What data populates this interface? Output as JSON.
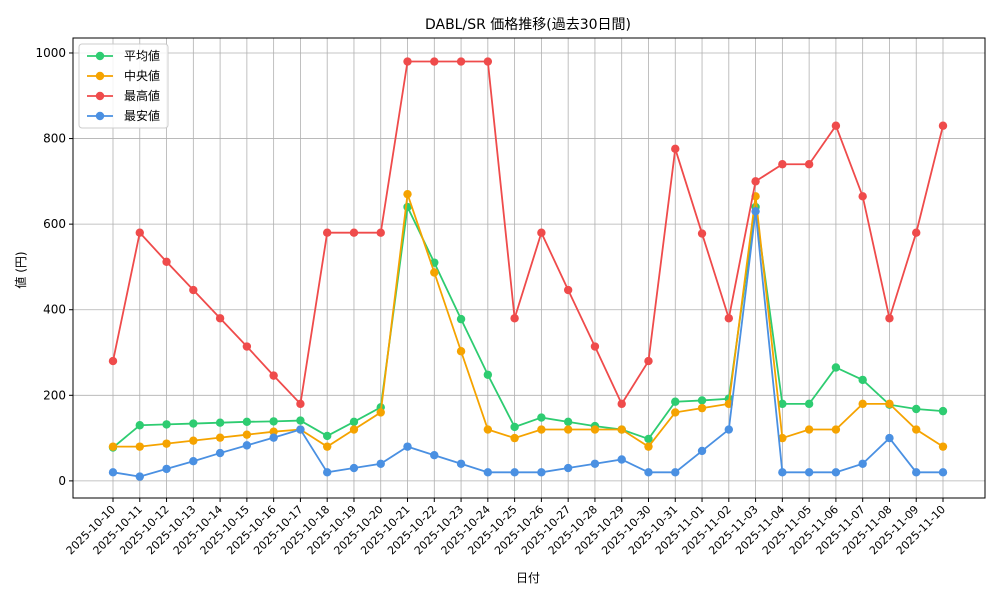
{
  "chart_data": {
    "type": "line",
    "title": "DABL/SR 価格推移(過去30日間)",
    "xlabel": "日付",
    "ylabel": "値 (円)",
    "ylim": [
      -40,
      1035
    ],
    "yticks": [
      0,
      200,
      400,
      600,
      800,
      1000
    ],
    "grid": true,
    "legend_position": "top-left",
    "x": [
      "2025-10-10",
      "2025-10-11",
      "2025-10-12",
      "2025-10-13",
      "2025-10-14",
      "2025-10-15",
      "2025-10-16",
      "2025-10-17",
      "2025-10-18",
      "2025-10-19",
      "2025-10-20",
      "2025-10-21",
      "2025-10-22",
      "2025-10-23",
      "2025-10-24",
      "2025-10-25",
      "2025-10-26",
      "2025-10-27",
      "2025-10-28",
      "2025-10-29",
      "2025-10-30",
      "2025-10-31",
      "2025-11-01",
      "2025-11-02",
      "2025-11-03",
      "2025-11-04",
      "2025-11-05",
      "2025-11-06",
      "2025-11-07",
      "2025-11-08",
      "2025-11-09",
      "2025-11-10"
    ],
    "series": [
      {
        "name": "平均値",
        "color": "#2ecc71",
        "values": [
          78,
          130,
          132,
          134,
          136,
          138,
          139,
          141,
          105,
          138,
          172,
          640,
          510,
          378,
          248,
          126,
          148,
          138,
          128,
          120,
          98,
          185,
          188,
          192,
          640,
          180,
          180,
          265,
          236,
          178,
          168,
          163
        ]
      },
      {
        "name": "中央値",
        "color": "#f5a300",
        "values": [
          80,
          80,
          87,
          94,
          101,
          108,
          115,
          120,
          80,
          120,
          160,
          670,
          487,
          303,
          120,
          100,
          120,
          120,
          120,
          120,
          80,
          160,
          170,
          180,
          665,
          100,
          120,
          120,
          180,
          180,
          120,
          80
        ]
      },
      {
        "name": "最高値",
        "color": "#ef4b4b",
        "values": [
          280,
          580,
          512,
          446,
          380,
          314,
          246,
          180,
          580,
          580,
          580,
          980,
          980,
          980,
          980,
          380,
          580,
          446,
          314,
          180,
          280,
          776,
          578,
          380,
          700,
          740,
          740,
          830,
          665,
          380,
          580,
          830
        ]
      },
      {
        "name": "最安値",
        "color": "#4a90e2",
        "values": [
          20,
          10,
          28,
          46,
          65,
          83,
          101,
          120,
          20,
          30,
          40,
          80,
          60,
          40,
          20,
          20,
          20,
          30,
          40,
          50,
          20,
          20,
          70,
          120,
          630,
          20,
          20,
          20,
          40,
          100,
          20,
          20
        ]
      }
    ]
  }
}
